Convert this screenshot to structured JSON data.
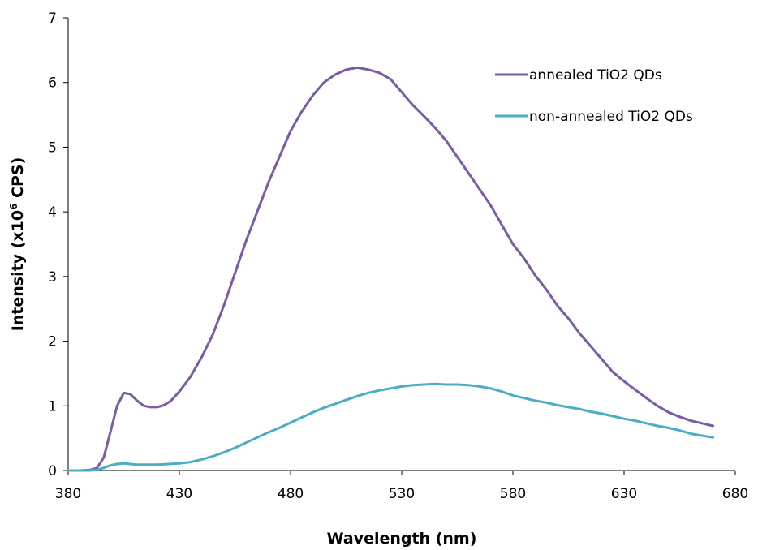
{
  "chart_data": {
    "type": "line",
    "xlabel": "Wavelength (nm)",
    "ylabel": {
      "prefix": "Intensity (x10",
      "superscript": "6",
      "suffix": " CPS)"
    },
    "xlim": [
      380,
      680
    ],
    "ylim": [
      0,
      7
    ],
    "x_ticks": [
      380,
      430,
      480,
      530,
      580,
      630,
      680
    ],
    "y_ticks": [
      0,
      1,
      2,
      3,
      4,
      5,
      6,
      7
    ],
    "grid": false,
    "legend_position": "top-right",
    "series": [
      {
        "name": "annealed TiO2 QDs",
        "color": "#7B5BA6",
        "x": [
          380,
          385,
          390,
          393,
          396,
          399,
          402,
          405,
          408,
          411,
          414,
          417,
          420,
          423,
          426,
          430,
          435,
          440,
          445,
          450,
          455,
          460,
          465,
          470,
          475,
          480,
          485,
          490,
          495,
          500,
          505,
          510,
          515,
          520,
          525,
          530,
          535,
          540,
          545,
          550,
          555,
          560,
          565,
          570,
          575,
          580,
          585,
          590,
          595,
          600,
          605,
          610,
          615,
          620,
          625,
          630,
          635,
          640,
          645,
          650,
          655,
          660,
          665,
          670
        ],
        "y": [
          0.0,
          0.0,
          0.01,
          0.04,
          0.2,
          0.6,
          1.0,
          1.2,
          1.18,
          1.08,
          1.0,
          0.98,
          0.98,
          1.01,
          1.07,
          1.22,
          1.45,
          1.75,
          2.1,
          2.55,
          3.05,
          3.55,
          4.0,
          4.45,
          4.85,
          5.25,
          5.55,
          5.8,
          6.0,
          6.12,
          6.2,
          6.23,
          6.2,
          6.15,
          6.05,
          5.85,
          5.65,
          5.48,
          5.3,
          5.1,
          4.85,
          4.6,
          4.35,
          4.1,
          3.8,
          3.5,
          3.28,
          3.02,
          2.8,
          2.55,
          2.35,
          2.12,
          1.92,
          1.72,
          1.52,
          1.38,
          1.25,
          1.12,
          1.0,
          0.9,
          0.83,
          0.77,
          0.73,
          0.69
        ]
      },
      {
        "name": "non-annealed TiO2 QDs",
        "color": "#4BACC6",
        "x": [
          380,
          385,
          390,
          393,
          396,
          399,
          402,
          405,
          408,
          411,
          414,
          417,
          420,
          425,
          430,
          435,
          440,
          445,
          450,
          455,
          460,
          465,
          470,
          475,
          480,
          485,
          490,
          495,
          500,
          505,
          510,
          515,
          520,
          525,
          530,
          535,
          540,
          545,
          550,
          555,
          560,
          565,
          570,
          575,
          580,
          585,
          590,
          595,
          600,
          605,
          610,
          615,
          620,
          625,
          630,
          635,
          640,
          645,
          650,
          655,
          660,
          665,
          670
        ],
        "y": [
          0.0,
          0.0,
          0.0,
          0.01,
          0.04,
          0.08,
          0.1,
          0.11,
          0.1,
          0.09,
          0.09,
          0.09,
          0.09,
          0.1,
          0.11,
          0.13,
          0.17,
          0.22,
          0.28,
          0.35,
          0.43,
          0.51,
          0.59,
          0.66,
          0.74,
          0.82,
          0.9,
          0.97,
          1.03,
          1.09,
          1.15,
          1.2,
          1.24,
          1.27,
          1.3,
          1.32,
          1.33,
          1.34,
          1.33,
          1.33,
          1.32,
          1.3,
          1.27,
          1.22,
          1.16,
          1.12,
          1.08,
          1.05,
          1.01,
          0.98,
          0.95,
          0.91,
          0.88,
          0.84,
          0.8,
          0.77,
          0.73,
          0.69,
          0.66,
          0.62,
          0.57,
          0.54,
          0.51
        ]
      }
    ]
  }
}
